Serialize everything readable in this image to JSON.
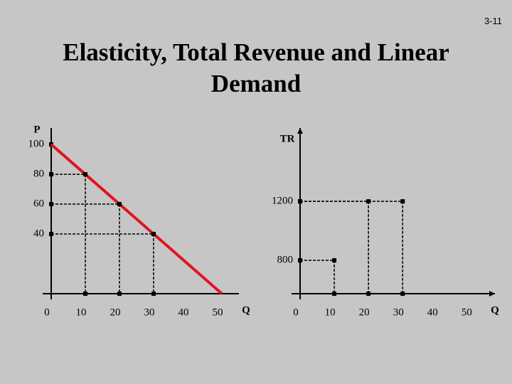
{
  "slide": {
    "page_number": "3-11",
    "title": "Elasticity, Total Revenue and Linear Demand"
  },
  "chart_data": [
    {
      "type": "line",
      "y_label": "P",
      "x_label": "Q",
      "xlim": [
        0,
        55
      ],
      "ylim": [
        0,
        111
      ],
      "xticks": [
        0,
        10,
        20,
        30,
        40,
        50
      ],
      "yticks": [
        40,
        60,
        80,
        100
      ],
      "series": [
        {
          "name": "Demand",
          "color": "#e0141e",
          "x": [
            0,
            50
          ],
          "values": [
            100,
            0
          ]
        }
      ],
      "points": {
        "x": [
          10,
          20,
          30
        ],
        "values": [
          80,
          60,
          40
        ]
      }
    },
    {
      "type": "points",
      "y_label": "TR",
      "x_label": "Q",
      "xlim": [
        0,
        57
      ],
      "ylim": [
        574,
        1697
      ],
      "xticks": [
        0,
        10,
        20,
        30,
        40,
        50
      ],
      "yticks": [
        800,
        1200
      ],
      "points": {
        "x": [
          10,
          20,
          30
        ],
        "values": [
          800,
          1200,
          1200
        ]
      }
    }
  ]
}
